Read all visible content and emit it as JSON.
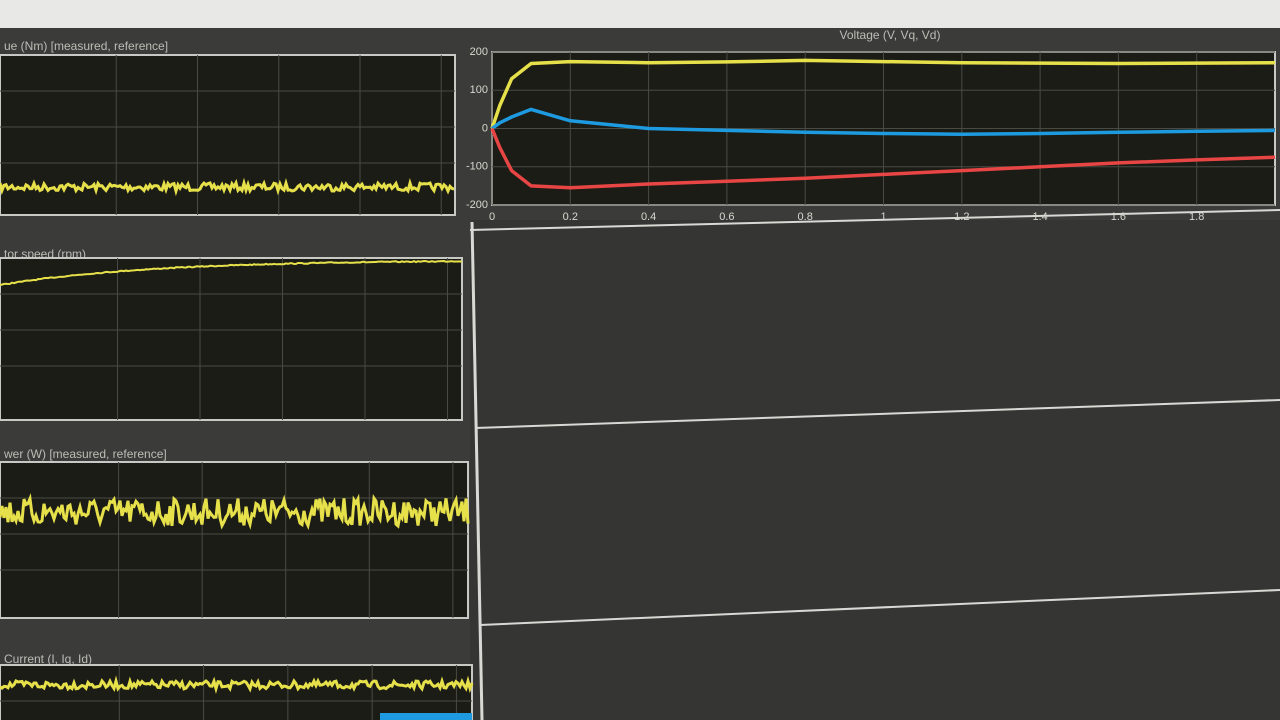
{
  "panels": [
    {
      "title": "ue (Nm) [measured, reference]"
    },
    {
      "title": "tor speed (rpm)"
    },
    {
      "title": "wer (W) [measured, reference]"
    },
    {
      "title": "Current (I, Iq, Id)"
    }
  ],
  "chart_data": {
    "type": "line",
    "title": "Voltage (V, Vq, Vd)",
    "x": [
      0,
      0.02,
      0.05,
      0.1,
      0.2,
      0.4,
      0.6,
      0.8,
      1,
      1.2,
      1.4,
      1.6,
      1.8,
      2
    ],
    "series": [
      {
        "color": "#e6e04a",
        "values": [
          0,
          60,
          130,
          170,
          175,
          172,
          174,
          178,
          175,
          172,
          171,
          170,
          171,
          172
        ]
      },
      {
        "color": "#1e9be0",
        "values": [
          0,
          15,
          30,
          50,
          20,
          0,
          -5,
          -10,
          -13,
          -15,
          -13,
          -10,
          -7,
          -5
        ]
      },
      {
        "color": "#e84545",
        "values": [
          0,
          -50,
          -110,
          -150,
          -155,
          -145,
          -138,
          -130,
          -120,
          -110,
          -100,
          -90,
          -82,
          -75
        ]
      }
    ],
    "xlim": [
      0,
      2
    ],
    "ylim": [
      -200,
      200
    ],
    "xticks": [
      0,
      0.2,
      0.4,
      0.6,
      0.8,
      1,
      1.2,
      1.4,
      1.6,
      1.8
    ],
    "yticks": [
      -200,
      -100,
      0,
      100,
      200
    ],
    "grid": true
  }
}
